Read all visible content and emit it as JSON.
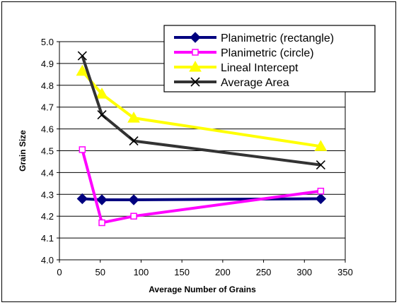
{
  "chart_data": {
    "type": "line",
    "title": "",
    "xlabel": "Average Number of Grains",
    "ylabel": "Grain Size",
    "xlim": [
      0,
      350
    ],
    "ylim": [
      4.0,
      5.0
    ],
    "x_ticks": [
      "0",
      "50",
      "100",
      "150",
      "200",
      "250",
      "300",
      "350"
    ],
    "y_ticks": [
      "4.0",
      "4.1",
      "4.2",
      "4.3",
      "4.4",
      "4.5",
      "4.6",
      "4.7",
      "4.8",
      "4.9",
      "5.0"
    ],
    "grid": "horizontal",
    "legend_position": "top-right",
    "series": [
      {
        "name": "Planimetric (rectangle)",
        "color": "#00007f",
        "marker": "diamond",
        "x": [
          28,
          52,
          91,
          320
        ],
        "y": [
          4.28,
          4.275,
          4.275,
          4.28
        ]
      },
      {
        "name": "Planimetric (circle)",
        "color": "#ff00ff",
        "marker": "square",
        "x": [
          28,
          52,
          91,
          320
        ],
        "y": [
          4.505,
          4.17,
          4.2,
          4.315
        ]
      },
      {
        "name": "Lineal Intercept",
        "color": "#ffff00",
        "marker": "triangle",
        "x": [
          28,
          52,
          91,
          320
        ],
        "y": [
          4.865,
          4.76,
          4.65,
          4.52
        ]
      },
      {
        "name": "Average Area",
        "color": "#333333",
        "marker": "x",
        "x": [
          28,
          52,
          91,
          320
        ],
        "y": [
          4.935,
          4.665,
          4.545,
          4.435
        ]
      }
    ]
  }
}
